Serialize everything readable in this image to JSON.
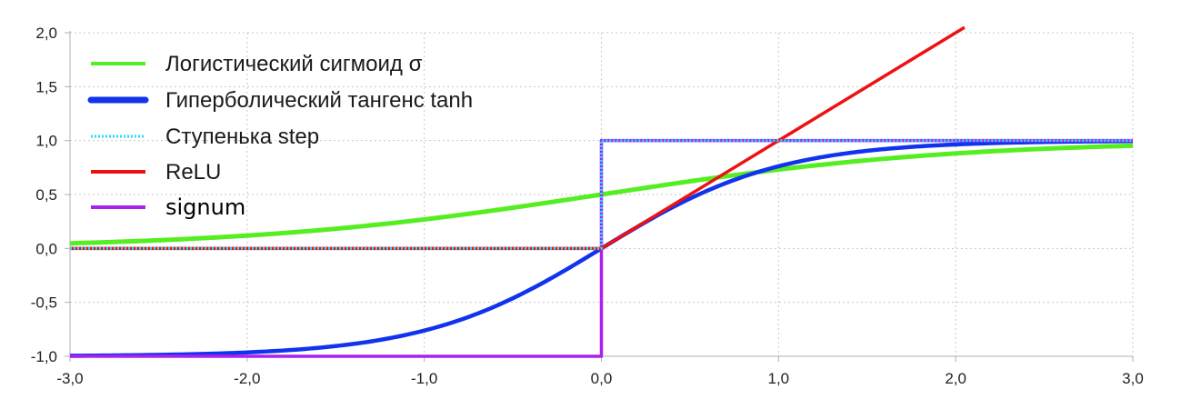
{
  "chart_data": {
    "type": "line",
    "title": "",
    "xlabel": "",
    "ylabel": "",
    "xlim": [
      -3.0,
      3.0
    ],
    "ylim": [
      -1.0,
      2.0
    ],
    "x_ticks": [
      "-3,0",
      "-2,0",
      "-1,0",
      "0,0",
      "1,0",
      "2,0",
      "3,0"
    ],
    "y_ticks": [
      "2,0",
      "1,5",
      "1,0",
      "0,5",
      "0,0",
      "-0,5",
      "-1,0"
    ],
    "grid": true,
    "legend_position": "top-left",
    "series": [
      {
        "name": "Логистический сигмоид σ",
        "function": "sigmoid",
        "color": "#55ee22",
        "style": "solid",
        "x": [
          -3.0,
          -2.5,
          -2.0,
          -1.5,
          -1.0,
          -0.5,
          0.0,
          0.5,
          1.0,
          1.5,
          2.0,
          2.5,
          3.0
        ],
        "y": [
          0.05,
          0.08,
          0.12,
          0.18,
          0.27,
          0.38,
          0.5,
          0.62,
          0.73,
          0.82,
          0.88,
          0.92,
          0.95
        ]
      },
      {
        "name": "Гиперболический тангенс tanh",
        "function": "tanh",
        "color": "#1133ee",
        "style": "solid",
        "x": [
          -3.0,
          -2.5,
          -2.0,
          -1.5,
          -1.0,
          -0.5,
          0.0,
          0.5,
          1.0,
          1.5,
          2.0,
          2.5,
          3.0
        ],
        "y": [
          -1.0,
          -0.99,
          -0.96,
          -0.91,
          -0.76,
          -0.46,
          0.0,
          0.46,
          0.76,
          0.91,
          0.96,
          0.99,
          1.0
        ]
      },
      {
        "name": "Ступенька step",
        "function": "step",
        "color": "#22ddff",
        "style": "dotted",
        "x": [
          -3.0,
          0.0,
          0.0,
          3.0
        ],
        "y": [
          0.0,
          0.0,
          1.0,
          1.0
        ]
      },
      {
        "name": "ReLU",
        "function": "relu",
        "color": "#ee1111",
        "style": "solid",
        "x": [
          -3.0,
          0.0,
          2.05
        ],
        "y": [
          0.0,
          0.0,
          2.05
        ]
      },
      {
        "name": "signum",
        "function": "signum",
        "color": "#aa22ee",
        "style": "solid",
        "x": [
          -3.0,
          0.0,
          0.0,
          3.0
        ],
        "y": [
          -1.0,
          -1.0,
          1.0,
          1.0
        ]
      }
    ]
  }
}
